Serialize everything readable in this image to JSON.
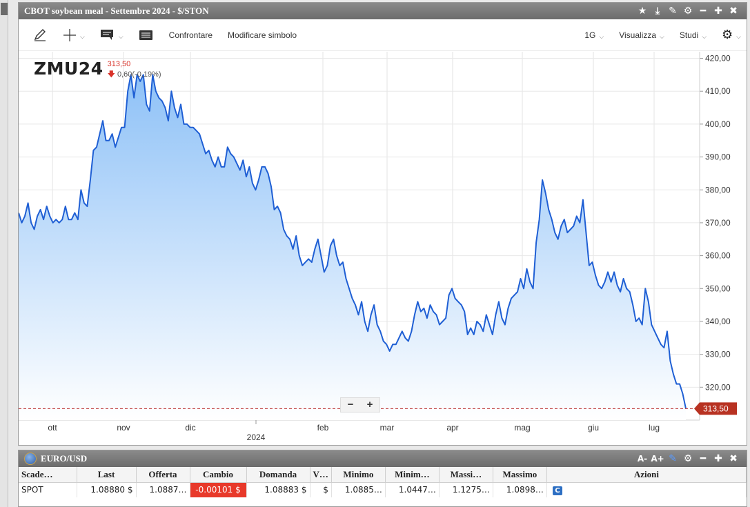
{
  "window": {
    "title": "CBOT soybean meal - Settembre 2024 - $/STON",
    "title_icons": [
      "star-icon",
      "download-icon",
      "pen-icon",
      "gear-icon",
      "minimize-icon",
      "maximize-icon",
      "close-icon"
    ]
  },
  "toolbar": {
    "draw_icon": "pencil-icon",
    "crosshair_icon": "crosshair-icon",
    "annotation_icon": "comment-icon",
    "table_icon": "table-icon",
    "compare_label": "Confrontare",
    "modify_symbol_label": "Modificare simbolo",
    "interval_label": "1G",
    "view_label": "Visualizza",
    "studies_label": "Studi"
  },
  "symbol": {
    "ticker": "ZMU24",
    "last": "313,50",
    "change": "0,60(-0,19%)",
    "last_price_tag": "313,50"
  },
  "chart_data": {
    "type": "area",
    "series": [
      {
        "values": [
          373,
          370,
          372,
          376,
          370,
          368,
          372,
          374,
          371,
          375,
          372,
          370,
          371,
          370,
          371,
          375,
          371,
          371,
          373,
          371,
          380,
          376,
          375,
          383,
          392,
          393,
          397,
          401,
          395,
          395,
          397,
          393,
          396,
          399,
          399,
          410,
          415,
          408,
          415,
          413,
          415,
          406,
          404,
          415,
          410,
          408,
          407,
          405,
          401,
          410,
          405,
          402,
          406,
          400,
          400,
          399,
          399,
          398,
          397,
          394,
          391,
          392,
          389,
          387,
          390,
          387,
          387,
          393,
          391,
          390,
          388,
          386,
          389,
          384,
          387,
          382,
          380,
          383,
          387,
          387,
          385,
          381,
          374,
          375,
          373,
          368,
          366,
          365,
          362,
          366,
          360,
          357,
          358,
          359,
          358,
          362,
          365,
          360,
          355,
          357,
          363,
          365,
          360,
          357,
          358,
          353,
          350,
          347,
          345,
          342,
          346,
          340,
          337,
          342,
          345,
          339,
          337,
          334,
          333,
          331,
          333,
          333,
          335,
          337,
          335,
          334,
          337,
          342,
          346,
          343,
          344,
          341,
          345,
          343,
          342,
          339,
          340,
          341,
          348,
          350,
          347,
          346,
          345,
          343,
          336,
          338,
          336,
          340,
          339,
          337,
          342,
          339,
          336,
          342,
          346,
          341,
          339,
          344,
          347,
          348,
          349,
          353,
          350,
          356,
          352,
          350,
          364,
          371,
          383,
          379,
          374,
          371,
          367,
          365,
          369,
          371,
          367,
          368,
          369,
          372,
          370,
          377,
          367,
          357,
          358,
          354,
          351,
          350,
          352,
          355,
          352,
          355,
          351,
          349,
          353,
          350,
          349,
          345,
          340,
          341,
          339,
          350,
          346,
          339,
          337,
          335,
          333,
          332,
          337,
          328,
          324,
          321,
          321,
          318,
          313.5
        ]
      }
    ],
    "x_ticks": [
      "ott",
      "nov",
      "dic",
      "2024",
      "feb",
      "mar",
      "apr",
      "mag",
      "giu",
      "lug"
    ],
    "y_ticks": [
      "420,00",
      "410,00",
      "400,00",
      "390,00",
      "380,00",
      "370,00",
      "360,00",
      "350,00",
      "340,00",
      "330,00",
      "320,00"
    ],
    "year_label": "2024",
    "ylim": [
      310,
      422
    ],
    "last_value": 313.5,
    "line_color": "#1f5fd4",
    "fill_top": "#8ec1f7",
    "fill_bottom": "#ffffff",
    "grid": true
  },
  "bottom": {
    "title": "EURO/USD",
    "title_icons": [
      "font-smaller-icon",
      "font-larger-icon",
      "pen-icon",
      "gear-icon",
      "minimize-icon",
      "maximize-icon",
      "close-icon"
    ],
    "font_small": "A-",
    "font_large": "A+",
    "columns": [
      "Scade…",
      "Last",
      "Offerta",
      "Cambio",
      "Domanda",
      "V…",
      "Minimo",
      "Minim…",
      "Massi…",
      "Massimo",
      "Azioni"
    ],
    "row": {
      "expiry": "SPOT",
      "last": "1.08880 $",
      "bid": "1.0887…",
      "change": "-0.00101 $",
      "ask": "1.08883 $",
      "volume": "$",
      "low": "1.0885…",
      "low2": "1.0447…",
      "high2": "1.1275…",
      "high": "1.0898…",
      "action": "C"
    }
  }
}
